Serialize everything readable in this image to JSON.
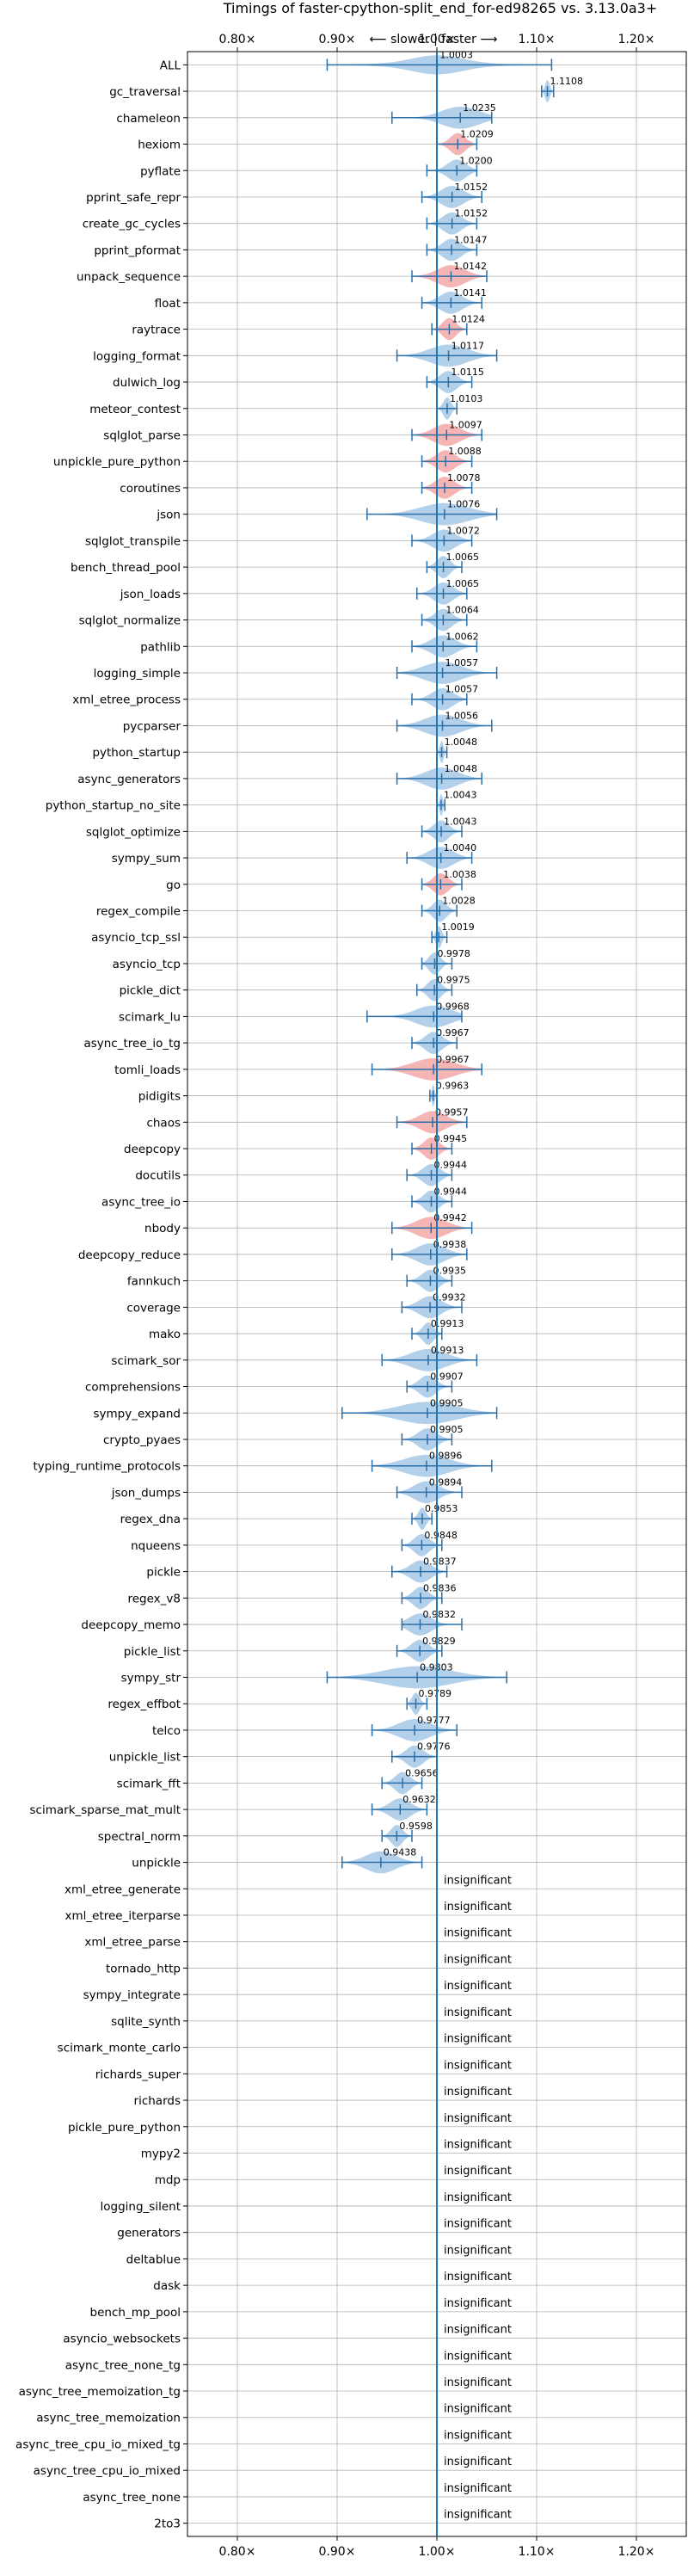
{
  "chart_data": {
    "type": "violin",
    "title": "Timings of faster-cpython-split_end_for-ed98265 vs. 3.13.0a3+",
    "subtitle": "⟵ slower  |  faster ⟶",
    "xlim": [
      0.75,
      1.25
    ],
    "x_ticks": [
      0.8,
      0.9,
      1.0,
      1.1,
      1.2
    ],
    "x_tick_labels": [
      "0.80×",
      "0.90×",
      "1.00×",
      "1.10×",
      "1.20×"
    ],
    "grid": true,
    "colors": {
      "faster": "#a6c8e6",
      "slower": "#f4a8a8",
      "axis_line": "#1f77b4",
      "whisker": "#2b6fa8"
    },
    "insignificant_label": "insignificant",
    "benchmarks": [
      {
        "name": "ALL",
        "value": 1.0003,
        "label": "1.0003",
        "min": 0.89,
        "max": 1.115,
        "status": "faster",
        "shape": "all"
      },
      {
        "name": "gc_traversal",
        "value": 1.1108,
        "label": "1.1108",
        "min": 1.105,
        "max": 1.117,
        "status": "faster"
      },
      {
        "name": "chameleon",
        "value": 1.0235,
        "label": "1.0235",
        "min": 0.955,
        "max": 1.055,
        "status": "faster"
      },
      {
        "name": "hexiom",
        "value": 1.0209,
        "label": "1.0209",
        "min": 1.0,
        "max": 1.04,
        "status": "slower"
      },
      {
        "name": "pyflate",
        "value": 1.02,
        "label": "1.0200",
        "min": 0.99,
        "max": 1.04,
        "status": "faster"
      },
      {
        "name": "pprint_safe_repr",
        "value": 1.0152,
        "label": "1.0152",
        "min": 0.985,
        "max": 1.045,
        "status": "faster"
      },
      {
        "name": "create_gc_cycles",
        "value": 1.0152,
        "label": "1.0152",
        "min": 0.99,
        "max": 1.04,
        "status": "faster"
      },
      {
        "name": "pprint_pformat",
        "value": 1.0147,
        "label": "1.0147",
        "min": 0.99,
        "max": 1.04,
        "status": "faster"
      },
      {
        "name": "unpack_sequence",
        "value": 1.0142,
        "label": "1.0142",
        "min": 0.975,
        "max": 1.05,
        "status": "slower"
      },
      {
        "name": "float",
        "value": 1.0141,
        "label": "1.0141",
        "min": 0.985,
        "max": 1.045,
        "status": "faster"
      },
      {
        "name": "raytrace",
        "value": 1.0124,
        "label": "1.0124",
        "min": 0.995,
        "max": 1.03,
        "status": "slower"
      },
      {
        "name": "logging_format",
        "value": 1.0117,
        "label": "1.0117",
        "min": 0.96,
        "max": 1.06,
        "status": "faster"
      },
      {
        "name": "dulwich_log",
        "value": 1.0115,
        "label": "1.0115",
        "min": 0.99,
        "max": 1.035,
        "status": "faster"
      },
      {
        "name": "meteor_contest",
        "value": 1.0103,
        "label": "1.0103",
        "min": 1.0,
        "max": 1.02,
        "status": "faster"
      },
      {
        "name": "sqlglot_parse",
        "value": 1.0097,
        "label": "1.0097",
        "min": 0.975,
        "max": 1.045,
        "status": "slower"
      },
      {
        "name": "unpickle_pure_python",
        "value": 1.0088,
        "label": "1.0088",
        "min": 0.985,
        "max": 1.035,
        "status": "slower"
      },
      {
        "name": "coroutines",
        "value": 1.0078,
        "label": "1.0078",
        "min": 0.985,
        "max": 1.035,
        "status": "slower"
      },
      {
        "name": "json",
        "value": 1.0076,
        "label": "1.0076",
        "min": 0.93,
        "max": 1.06,
        "status": "faster"
      },
      {
        "name": "sqlglot_transpile",
        "value": 1.0072,
        "label": "1.0072",
        "min": 0.975,
        "max": 1.035,
        "status": "faster"
      },
      {
        "name": "bench_thread_pool",
        "value": 1.0065,
        "label": "1.0065",
        "min": 0.99,
        "max": 1.025,
        "status": "faster"
      },
      {
        "name": "json_loads",
        "value": 1.0065,
        "label": "1.0065",
        "min": 0.98,
        "max": 1.03,
        "status": "faster"
      },
      {
        "name": "sqlglot_normalize",
        "value": 1.0064,
        "label": "1.0064",
        "min": 0.985,
        "max": 1.03,
        "status": "faster"
      },
      {
        "name": "pathlib",
        "value": 1.0062,
        "label": "1.0062",
        "min": 0.975,
        "max": 1.04,
        "status": "faster"
      },
      {
        "name": "logging_simple",
        "value": 1.0057,
        "label": "1.0057",
        "min": 0.96,
        "max": 1.06,
        "status": "faster"
      },
      {
        "name": "xml_etree_process",
        "value": 1.0057,
        "label": "1.0057",
        "min": 0.975,
        "max": 1.03,
        "status": "faster"
      },
      {
        "name": "pycparser",
        "value": 1.0056,
        "label": "1.0056",
        "min": 0.96,
        "max": 1.055,
        "status": "faster"
      },
      {
        "name": "python_startup",
        "value": 1.0048,
        "label": "1.0048",
        "min": 1.0,
        "max": 1.01,
        "status": "faster"
      },
      {
        "name": "async_generators",
        "value": 1.0048,
        "label": "1.0048",
        "min": 0.96,
        "max": 1.045,
        "status": "faster"
      },
      {
        "name": "python_startup_no_site",
        "value": 1.0043,
        "label": "1.0043",
        "min": 1.0,
        "max": 1.008,
        "status": "faster"
      },
      {
        "name": "sqlglot_optimize",
        "value": 1.0043,
        "label": "1.0043",
        "min": 0.985,
        "max": 1.025,
        "status": "faster"
      },
      {
        "name": "sympy_sum",
        "value": 1.004,
        "label": "1.0040",
        "min": 0.97,
        "max": 1.035,
        "status": "faster"
      },
      {
        "name": "go",
        "value": 1.0038,
        "label": "1.0038",
        "min": 0.985,
        "max": 1.025,
        "status": "slower"
      },
      {
        "name": "regex_compile",
        "value": 1.0028,
        "label": "1.0028",
        "min": 0.985,
        "max": 1.02,
        "status": "faster"
      },
      {
        "name": "asyncio_tcp_ssl",
        "value": 1.0019,
        "label": "1.0019",
        "min": 0.995,
        "max": 1.01,
        "status": "faster"
      },
      {
        "name": "asyncio_tcp",
        "value": 0.9978,
        "label": "0.9978",
        "min": 0.985,
        "max": 1.015,
        "status": "faster"
      },
      {
        "name": "pickle_dict",
        "value": 0.9975,
        "label": "0.9975",
        "min": 0.98,
        "max": 1.015,
        "status": "faster"
      },
      {
        "name": "scimark_lu",
        "value": 0.9968,
        "label": "0.9968",
        "min": 0.93,
        "max": 1.025,
        "status": "faster"
      },
      {
        "name": "async_tree_io_tg",
        "value": 0.9967,
        "label": "0.9967",
        "min": 0.975,
        "max": 1.02,
        "status": "faster"
      },
      {
        "name": "tomli_loads",
        "value": 0.9967,
        "label": "0.9967",
        "min": 0.935,
        "max": 1.045,
        "status": "slower"
      },
      {
        "name": "pidigits",
        "value": 0.9963,
        "label": "0.9963",
        "min": 0.993,
        "max": 1.0,
        "status": "faster"
      },
      {
        "name": "chaos",
        "value": 0.9957,
        "label": "0.9957",
        "min": 0.96,
        "max": 1.03,
        "status": "slower"
      },
      {
        "name": "deepcopy",
        "value": 0.9945,
        "label": "0.9945",
        "min": 0.975,
        "max": 1.015,
        "status": "slower"
      },
      {
        "name": "docutils",
        "value": 0.9944,
        "label": "0.9944",
        "min": 0.97,
        "max": 1.015,
        "status": "faster"
      },
      {
        "name": "async_tree_io",
        "value": 0.9944,
        "label": "0.9944",
        "min": 0.975,
        "max": 1.015,
        "status": "faster"
      },
      {
        "name": "nbody",
        "value": 0.9942,
        "label": "0.9942",
        "min": 0.955,
        "max": 1.035,
        "status": "slower"
      },
      {
        "name": "deepcopy_reduce",
        "value": 0.9938,
        "label": "0.9938",
        "min": 0.955,
        "max": 1.03,
        "status": "faster"
      },
      {
        "name": "fannkuch",
        "value": 0.9935,
        "label": "0.9935",
        "min": 0.97,
        "max": 1.015,
        "status": "faster"
      },
      {
        "name": "coverage",
        "value": 0.9932,
        "label": "0.9932",
        "min": 0.965,
        "max": 1.025,
        "status": "faster"
      },
      {
        "name": "mako",
        "value": 0.9913,
        "label": "0.9913",
        "min": 0.975,
        "max": 1.005,
        "status": "faster"
      },
      {
        "name": "scimark_sor",
        "value": 0.9913,
        "label": "0.9913",
        "min": 0.945,
        "max": 1.04,
        "status": "faster"
      },
      {
        "name": "comprehensions",
        "value": 0.9907,
        "label": "0.9907",
        "min": 0.97,
        "max": 1.015,
        "status": "faster"
      },
      {
        "name": "sympy_expand",
        "value": 0.9905,
        "label": "0.9905",
        "min": 0.905,
        "max": 1.06,
        "status": "faster"
      },
      {
        "name": "crypto_pyaes",
        "value": 0.9905,
        "label": "0.9905",
        "min": 0.965,
        "max": 1.015,
        "status": "faster"
      },
      {
        "name": "typing_runtime_protocols",
        "value": 0.9896,
        "label": "0.9896",
        "min": 0.935,
        "max": 1.055,
        "status": "faster"
      },
      {
        "name": "json_dumps",
        "value": 0.9894,
        "label": "0.9894",
        "min": 0.96,
        "max": 1.025,
        "status": "faster"
      },
      {
        "name": "regex_dna",
        "value": 0.9853,
        "label": "0.9853",
        "min": 0.975,
        "max": 0.995,
        "status": "faster"
      },
      {
        "name": "nqueens",
        "value": 0.9848,
        "label": "0.9848",
        "min": 0.965,
        "max": 1.005,
        "status": "faster"
      },
      {
        "name": "pickle",
        "value": 0.9837,
        "label": "0.9837",
        "min": 0.955,
        "max": 1.01,
        "status": "faster"
      },
      {
        "name": "regex_v8",
        "value": 0.9836,
        "label": "0.9836",
        "min": 0.965,
        "max": 1.005,
        "status": "faster"
      },
      {
        "name": "deepcopy_memo",
        "value": 0.9832,
        "label": "0.9832",
        "min": 0.965,
        "max": 1.025,
        "status": "faster"
      },
      {
        "name": "pickle_list",
        "value": 0.9829,
        "label": "0.9829",
        "min": 0.96,
        "max": 1.005,
        "status": "faster"
      },
      {
        "name": "sympy_str",
        "value": 0.9803,
        "label": "0.9803",
        "min": 0.89,
        "max": 1.07,
        "status": "faster"
      },
      {
        "name": "regex_effbot",
        "value": 0.9789,
        "label": "0.9789",
        "min": 0.97,
        "max": 0.99,
        "status": "faster"
      },
      {
        "name": "telco",
        "value": 0.9777,
        "label": "0.9777",
        "min": 0.935,
        "max": 1.02,
        "status": "faster"
      },
      {
        "name": "unpickle_list",
        "value": 0.9776,
        "label": "0.9776",
        "min": 0.955,
        "max": 1.0,
        "status": "faster"
      },
      {
        "name": "scimark_fft",
        "value": 0.9656,
        "label": "0.9656",
        "min": 0.945,
        "max": 0.985,
        "status": "faster"
      },
      {
        "name": "scimark_sparse_mat_mult",
        "value": 0.9632,
        "label": "0.9632",
        "min": 0.935,
        "max": 0.99,
        "status": "faster"
      },
      {
        "name": "spectral_norm",
        "value": 0.9598,
        "label": "0.9598",
        "min": 0.945,
        "max": 0.975,
        "status": "faster"
      },
      {
        "name": "unpickle",
        "value": 0.9438,
        "label": "0.9438",
        "min": 0.905,
        "max": 0.985,
        "status": "faster"
      },
      {
        "name": "xml_etree_generate",
        "status": "insignificant"
      },
      {
        "name": "xml_etree_iterparse",
        "status": "insignificant"
      },
      {
        "name": "xml_etree_parse",
        "status": "insignificant"
      },
      {
        "name": "tornado_http",
        "status": "insignificant"
      },
      {
        "name": "sympy_integrate",
        "status": "insignificant"
      },
      {
        "name": "sqlite_synth",
        "status": "insignificant"
      },
      {
        "name": "scimark_monte_carlo",
        "status": "insignificant"
      },
      {
        "name": "richards_super",
        "status": "insignificant"
      },
      {
        "name": "richards",
        "status": "insignificant"
      },
      {
        "name": "pickle_pure_python",
        "status": "insignificant"
      },
      {
        "name": "mypy2",
        "status": "insignificant"
      },
      {
        "name": "mdp",
        "status": "insignificant"
      },
      {
        "name": "logging_silent",
        "status": "insignificant"
      },
      {
        "name": "generators",
        "status": "insignificant"
      },
      {
        "name": "deltablue",
        "status": "insignificant"
      },
      {
        "name": "dask",
        "status": "insignificant"
      },
      {
        "name": "bench_mp_pool",
        "status": "insignificant"
      },
      {
        "name": "asyncio_websockets",
        "status": "insignificant"
      },
      {
        "name": "async_tree_none_tg",
        "status": "insignificant"
      },
      {
        "name": "async_tree_memoization_tg",
        "status": "insignificant"
      },
      {
        "name": "async_tree_memoization",
        "status": "insignificant"
      },
      {
        "name": "async_tree_cpu_io_mixed_tg",
        "status": "insignificant"
      },
      {
        "name": "async_tree_cpu_io_mixed",
        "status": "insignificant"
      },
      {
        "name": "async_tree_none",
        "status": "insignificant"
      },
      {
        "name": "2to3",
        "status": "insignificant"
      }
    ]
  }
}
